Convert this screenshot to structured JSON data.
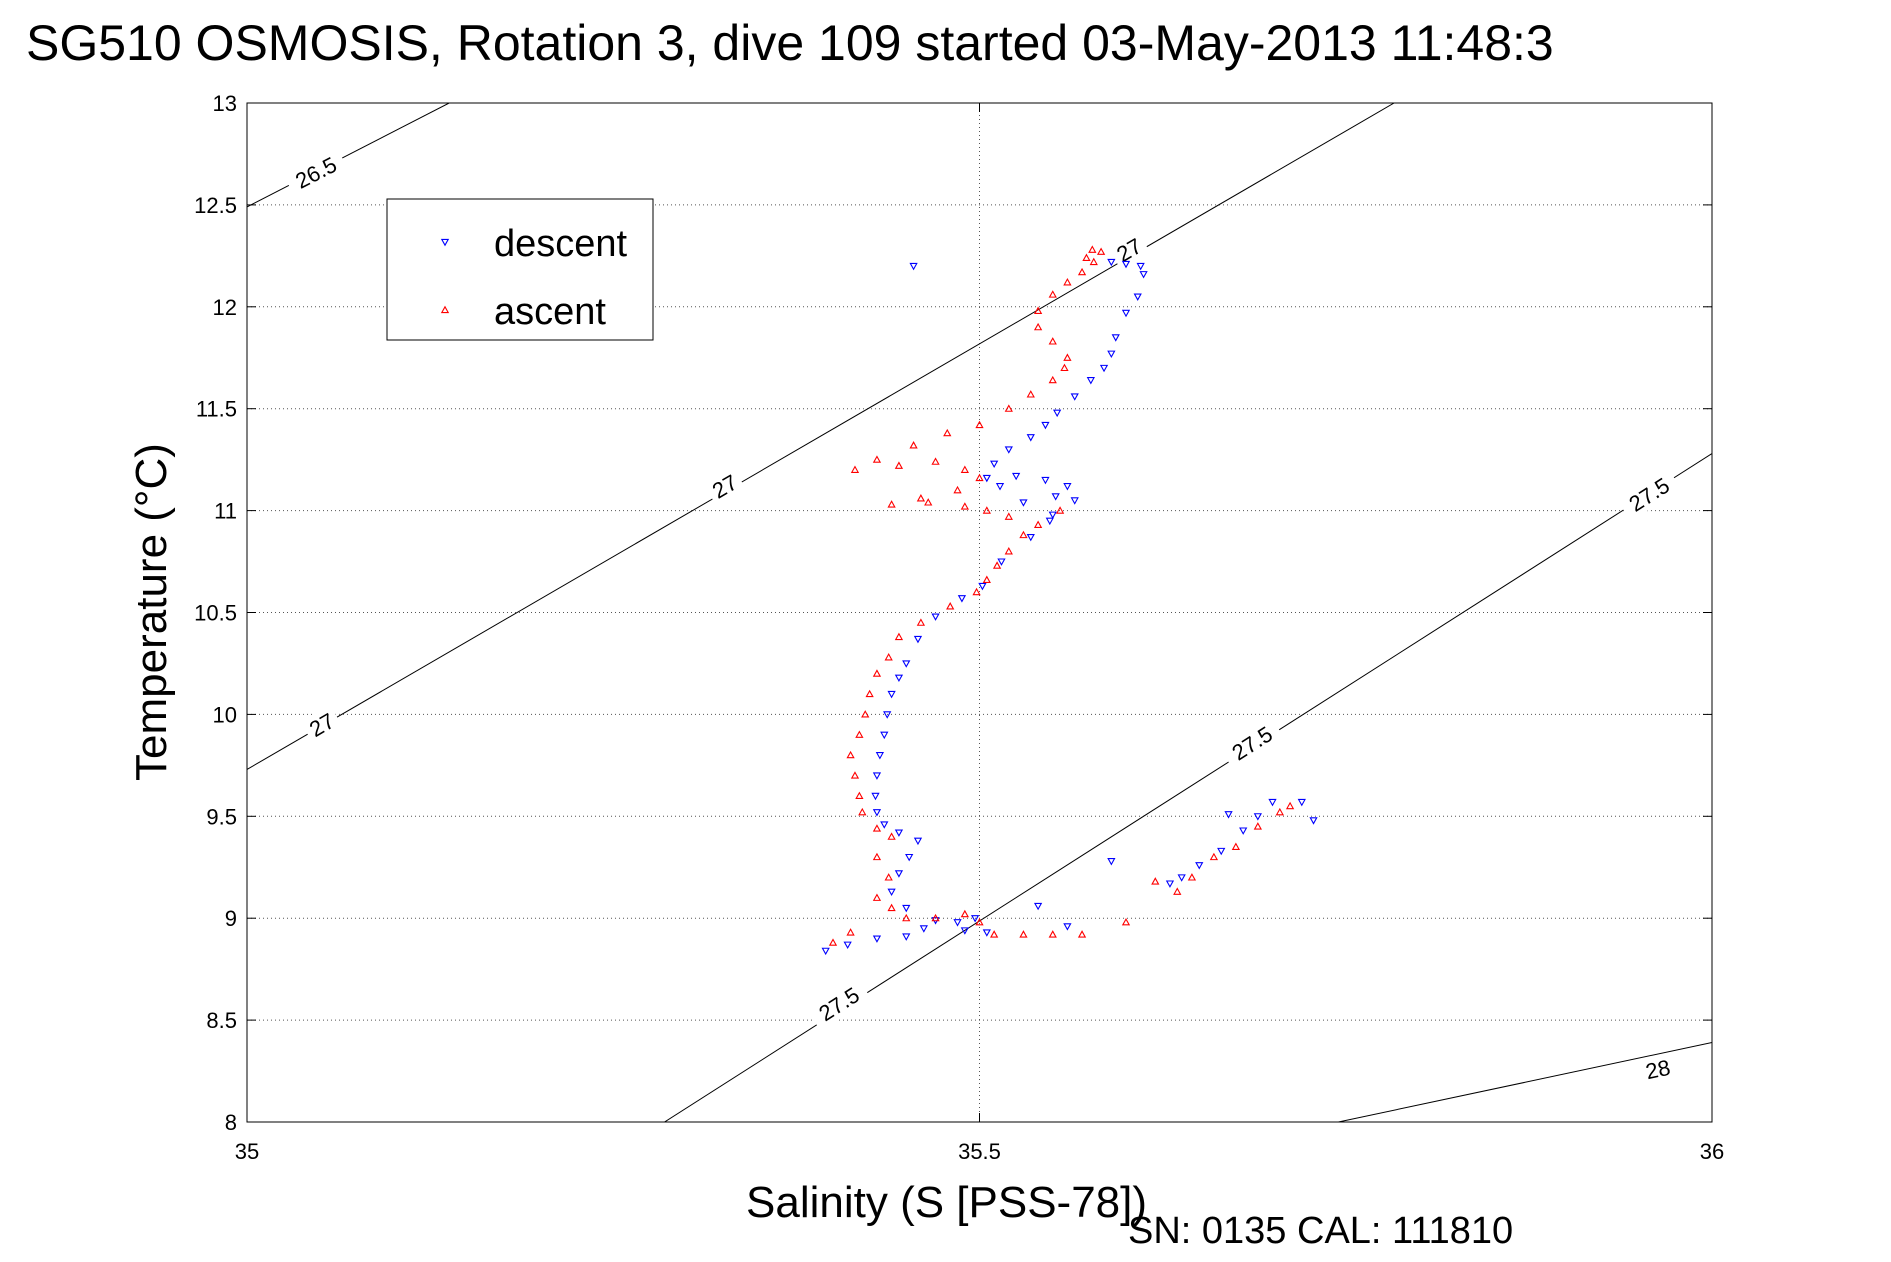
{
  "chart_data": {
    "type": "scatter",
    "title": "SG510 OSMOSIS, Rotation 3, dive 109 started 03-May-2013 11:48:3",
    "xlabel": "Salinity (S [PSS-78])",
    "ylabel": "Temperature (°C)",
    "footer": "SN: 0135  CAL: 111810",
    "xlim": [
      35,
      36
    ],
    "ylim": [
      8,
      13
    ],
    "xticks": [
      "35",
      "35.5",
      "36"
    ],
    "yticks": [
      "8",
      "8.5",
      "9",
      "9.5",
      "10",
      "10.5",
      "11",
      "11.5",
      "12",
      "12.5",
      "13"
    ],
    "grid": true,
    "legend_position": "top-left",
    "density_contours": [
      {
        "label": "26.5",
        "points": [
          [
            35.0,
            12.49
          ],
          [
            35.138,
            13.0
          ]
        ],
        "label_at": [
          [
            35.047,
            12.66
          ]
        ]
      },
      {
        "label": "27",
        "points": [
          [
            35.0,
            9.73
          ],
          [
            35.783,
            13.0
          ]
        ],
        "label_at": [
          [
            35.326,
            11.12
          ],
          [
            35.051,
            9.95
          ],
          [
            35.602,
            12.28
          ]
        ]
      },
      {
        "label": "27.5",
        "points": [
          [
            35.285,
            8.0
          ],
          [
            36.0,
            11.28
          ]
        ],
        "label_at": [
          [
            35.404,
            8.58
          ],
          [
            35.686,
            9.86
          ],
          [
            35.957,
            11.08
          ]
        ]
      },
      {
        "label": "28",
        "points": [
          [
            35.745,
            8.0
          ],
          [
            36.0,
            8.39
          ]
        ],
        "label_at": [
          [
            35.963,
            8.26
          ]
        ]
      }
    ],
    "series": [
      {
        "name": "descent",
        "color": "#0000ff",
        "marker": "triangle-down",
        "points": [
          [
            35.455,
            12.2
          ],
          [
            35.59,
            12.22
          ],
          [
            35.6,
            12.21
          ],
          [
            35.61,
            12.2
          ],
          [
            35.612,
            12.16
          ],
          [
            35.608,
            12.05
          ],
          [
            35.6,
            11.97
          ],
          [
            35.593,
            11.85
          ],
          [
            35.59,
            11.77
          ],
          [
            35.585,
            11.7
          ],
          [
            35.576,
            11.64
          ],
          [
            35.565,
            11.56
          ],
          [
            35.553,
            11.48
          ],
          [
            35.545,
            11.42
          ],
          [
            35.535,
            11.36
          ],
          [
            35.52,
            11.3
          ],
          [
            35.51,
            11.23
          ],
          [
            35.505,
            11.16
          ],
          [
            35.514,
            11.12
          ],
          [
            35.525,
            11.17
          ],
          [
            35.545,
            11.15
          ],
          [
            35.56,
            11.12
          ],
          [
            35.552,
            11.07
          ],
          [
            35.53,
            11.04
          ],
          [
            35.55,
            10.98
          ],
          [
            35.565,
            11.05
          ],
          [
            35.548,
            10.95
          ],
          [
            35.535,
            10.87
          ],
          [
            35.515,
            10.75
          ],
          [
            35.502,
            10.63
          ],
          [
            35.488,
            10.57
          ],
          [
            35.47,
            10.48
          ],
          [
            35.458,
            10.37
          ],
          [
            35.45,
            10.25
          ],
          [
            35.445,
            10.18
          ],
          [
            35.44,
            10.1
          ],
          [
            35.437,
            10.0
          ],
          [
            35.435,
            9.9
          ],
          [
            35.432,
            9.8
          ],
          [
            35.43,
            9.7
          ],
          [
            35.429,
            9.6
          ],
          [
            35.43,
            9.52
          ],
          [
            35.435,
            9.46
          ],
          [
            35.445,
            9.42
          ],
          [
            35.458,
            9.38
          ],
          [
            35.452,
            9.3
          ],
          [
            35.445,
            9.22
          ],
          [
            35.44,
            9.13
          ],
          [
            35.45,
            9.05
          ],
          [
            35.47,
            8.99
          ],
          [
            35.485,
            8.98
          ],
          [
            35.497,
            9.0
          ],
          [
            35.505,
            8.93
          ],
          [
            35.49,
            8.94
          ],
          [
            35.462,
            8.95
          ],
          [
            35.45,
            8.91
          ],
          [
            35.43,
            8.9
          ],
          [
            35.41,
            8.87
          ],
          [
            35.395,
            8.84
          ],
          [
            35.54,
            9.06
          ],
          [
            35.56,
            8.96
          ],
          [
            35.59,
            9.28
          ],
          [
            35.63,
            9.17
          ],
          [
            35.638,
            9.2
          ],
          [
            35.65,
            9.26
          ],
          [
            35.665,
            9.33
          ],
          [
            35.67,
            9.51
          ],
          [
            35.68,
            9.43
          ],
          [
            35.69,
            9.5
          ],
          [
            35.7,
            9.57
          ],
          [
            35.72,
            9.57
          ],
          [
            35.728,
            9.48
          ]
        ]
      },
      {
        "name": "ascent",
        "color": "#ff0000",
        "marker": "triangle-up",
        "points": [
          [
            35.573,
            12.24
          ],
          [
            35.577,
            12.28
          ],
          [
            35.583,
            12.27
          ],
          [
            35.578,
            12.22
          ],
          [
            35.57,
            12.17
          ],
          [
            35.56,
            12.12
          ],
          [
            35.55,
            12.06
          ],
          [
            35.54,
            11.98
          ],
          [
            35.54,
            11.9
          ],
          [
            35.55,
            11.83
          ],
          [
            35.56,
            11.75
          ],
          [
            35.558,
            11.7
          ],
          [
            35.55,
            11.64
          ],
          [
            35.535,
            11.57
          ],
          [
            35.52,
            11.5
          ],
          [
            35.5,
            11.42
          ],
          [
            35.478,
            11.38
          ],
          [
            35.455,
            11.32
          ],
          [
            35.43,
            11.25
          ],
          [
            35.415,
            11.2
          ],
          [
            35.445,
            11.22
          ],
          [
            35.47,
            11.24
          ],
          [
            35.49,
            11.2
          ],
          [
            35.5,
            11.16
          ],
          [
            35.485,
            11.1
          ],
          [
            35.46,
            11.06
          ],
          [
            35.44,
            11.03
          ],
          [
            35.465,
            11.04
          ],
          [
            35.49,
            11.02
          ],
          [
            35.505,
            11.0
          ],
          [
            35.52,
            10.97
          ],
          [
            35.54,
            10.93
          ],
          [
            35.555,
            11.0
          ],
          [
            35.53,
            10.88
          ],
          [
            35.52,
            10.8
          ],
          [
            35.512,
            10.73
          ],
          [
            35.505,
            10.66
          ],
          [
            35.498,
            10.6
          ],
          [
            35.48,
            10.53
          ],
          [
            35.46,
            10.45
          ],
          [
            35.445,
            10.38
          ],
          [
            35.438,
            10.28
          ],
          [
            35.43,
            10.2
          ],
          [
            35.425,
            10.1
          ],
          [
            35.422,
            10.0
          ],
          [
            35.418,
            9.9
          ],
          [
            35.412,
            9.8
          ],
          [
            35.415,
            9.7
          ],
          [
            35.418,
            9.6
          ],
          [
            35.42,
            9.52
          ],
          [
            35.43,
            9.44
          ],
          [
            35.44,
            9.4
          ],
          [
            35.43,
            9.3
          ],
          [
            35.438,
            9.2
          ],
          [
            35.43,
            9.1
          ],
          [
            35.44,
            9.05
          ],
          [
            35.45,
            9.0
          ],
          [
            35.47,
            9.0
          ],
          [
            35.49,
            9.02
          ],
          [
            35.5,
            8.98
          ],
          [
            35.51,
            8.92
          ],
          [
            35.53,
            8.92
          ],
          [
            35.55,
            8.92
          ],
          [
            35.57,
            8.92
          ],
          [
            35.6,
            8.98
          ],
          [
            35.412,
            8.93
          ],
          [
            35.4,
            8.88
          ],
          [
            35.62,
            9.18
          ],
          [
            35.635,
            9.13
          ],
          [
            35.645,
            9.2
          ],
          [
            35.66,
            9.3
          ],
          [
            35.675,
            9.35
          ],
          [
            35.69,
            9.45
          ],
          [
            35.705,
            9.52
          ],
          [
            35.712,
            9.55
          ]
        ]
      }
    ]
  }
}
